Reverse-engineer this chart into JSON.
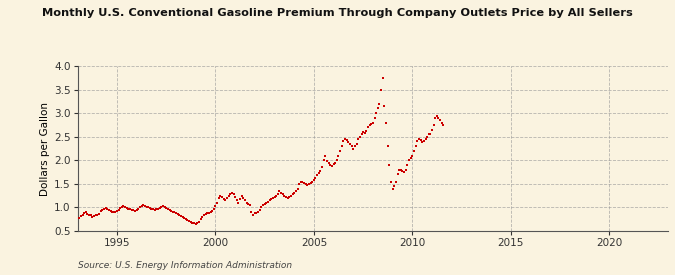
{
  "title": "Monthly U.S. Conventional Gasoline Premium Through Company Outlets Price by All Sellers",
  "ylabel": "Dollars per Gallon",
  "source": "Source: U.S. Energy Information Administration",
  "xlim": [
    1993.0,
    2023.0
  ],
  "ylim": [
    0.5,
    4.0
  ],
  "yticks": [
    0.5,
    1.0,
    1.5,
    2.0,
    2.5,
    3.0,
    3.5,
    4.0
  ],
  "xticks": [
    1995,
    2000,
    2005,
    2010,
    2015,
    2020
  ],
  "marker_color": "#cc0000",
  "background_color": "#faf3e0",
  "grid_color": "#999999",
  "data": [
    [
      1993.08,
      0.78
    ],
    [
      1993.17,
      0.82
    ],
    [
      1993.25,
      0.85
    ],
    [
      1993.33,
      0.88
    ],
    [
      1993.42,
      0.9
    ],
    [
      1993.5,
      0.87
    ],
    [
      1993.58,
      0.85
    ],
    [
      1993.67,
      0.83
    ],
    [
      1993.75,
      0.8
    ],
    [
      1993.83,
      0.82
    ],
    [
      1993.92,
      0.84
    ],
    [
      1994.0,
      0.85
    ],
    [
      1994.08,
      0.87
    ],
    [
      1994.17,
      0.92
    ],
    [
      1994.25,
      0.95
    ],
    [
      1994.33,
      0.97
    ],
    [
      1994.42,
      0.98
    ],
    [
      1994.5,
      0.96
    ],
    [
      1994.58,
      0.94
    ],
    [
      1994.67,
      0.93
    ],
    [
      1994.75,
      0.91
    ],
    [
      1994.83,
      0.9
    ],
    [
      1994.92,
      0.91
    ],
    [
      1995.0,
      0.93
    ],
    [
      1995.08,
      0.95
    ],
    [
      1995.17,
      0.98
    ],
    [
      1995.25,
      1.0
    ],
    [
      1995.33,
      1.02
    ],
    [
      1995.42,
      1.01
    ],
    [
      1995.5,
      0.99
    ],
    [
      1995.58,
      0.97
    ],
    [
      1995.67,
      0.96
    ],
    [
      1995.75,
      0.95
    ],
    [
      1995.83,
      0.94
    ],
    [
      1995.92,
      0.93
    ],
    [
      1996.0,
      0.94
    ],
    [
      1996.08,
      0.97
    ],
    [
      1996.17,
      1.01
    ],
    [
      1996.25,
      1.04
    ],
    [
      1996.33,
      1.05
    ],
    [
      1996.42,
      1.03
    ],
    [
      1996.5,
      1.01
    ],
    [
      1996.58,
      1.0
    ],
    [
      1996.67,
      0.98
    ],
    [
      1996.75,
      0.97
    ],
    [
      1996.83,
      0.96
    ],
    [
      1996.92,
      0.95
    ],
    [
      1997.0,
      0.96
    ],
    [
      1997.08,
      0.97
    ],
    [
      1997.17,
      0.99
    ],
    [
      1997.25,
      1.01
    ],
    [
      1997.33,
      1.02
    ],
    [
      1997.42,
      1.0
    ],
    [
      1997.5,
      0.98
    ],
    [
      1997.58,
      0.97
    ],
    [
      1997.67,
      0.95
    ],
    [
      1997.75,
      0.93
    ],
    [
      1997.83,
      0.91
    ],
    [
      1997.92,
      0.9
    ],
    [
      1998.0,
      0.88
    ],
    [
      1998.08,
      0.86
    ],
    [
      1998.17,
      0.84
    ],
    [
      1998.25,
      0.82
    ],
    [
      1998.33,
      0.8
    ],
    [
      1998.42,
      0.78
    ],
    [
      1998.5,
      0.76
    ],
    [
      1998.58,
      0.74
    ],
    [
      1998.67,
      0.72
    ],
    [
      1998.75,
      0.7
    ],
    [
      1998.83,
      0.68
    ],
    [
      1998.92,
      0.66
    ],
    [
      1999.0,
      0.65
    ],
    [
      1999.08,
      0.66
    ],
    [
      1999.17,
      0.7
    ],
    [
      1999.25,
      0.75
    ],
    [
      1999.33,
      0.8
    ],
    [
      1999.42,
      0.84
    ],
    [
      1999.5,
      0.86
    ],
    [
      1999.58,
      0.88
    ],
    [
      1999.67,
      0.88
    ],
    [
      1999.75,
      0.9
    ],
    [
      1999.83,
      0.93
    ],
    [
      1999.92,
      0.97
    ],
    [
      2000.0,
      1.02
    ],
    [
      2000.08,
      1.1
    ],
    [
      2000.17,
      1.2
    ],
    [
      2000.25,
      1.25
    ],
    [
      2000.33,
      1.22
    ],
    [
      2000.42,
      1.18
    ],
    [
      2000.5,
      1.15
    ],
    [
      2000.58,
      1.2
    ],
    [
      2000.67,
      1.25
    ],
    [
      2000.75,
      1.28
    ],
    [
      2000.83,
      1.3
    ],
    [
      2000.92,
      1.28
    ],
    [
      2001.0,
      1.22
    ],
    [
      2001.08,
      1.15
    ],
    [
      2001.17,
      1.1
    ],
    [
      2001.25,
      1.18
    ],
    [
      2001.33,
      1.25
    ],
    [
      2001.42,
      1.2
    ],
    [
      2001.5,
      1.15
    ],
    [
      2001.58,
      1.1
    ],
    [
      2001.67,
      1.08
    ],
    [
      2001.75,
      1.05
    ],
    [
      2001.83,
      0.9
    ],
    [
      2001.92,
      0.85
    ],
    [
      2002.0,
      0.88
    ],
    [
      2002.08,
      0.88
    ],
    [
      2002.17,
      0.9
    ],
    [
      2002.25,
      0.95
    ],
    [
      2002.33,
      1.0
    ],
    [
      2002.42,
      1.05
    ],
    [
      2002.5,
      1.08
    ],
    [
      2002.58,
      1.1
    ],
    [
      2002.67,
      1.12
    ],
    [
      2002.75,
      1.15
    ],
    [
      2002.83,
      1.18
    ],
    [
      2002.92,
      1.2
    ],
    [
      2003.0,
      1.22
    ],
    [
      2003.08,
      1.25
    ],
    [
      2003.17,
      1.28
    ],
    [
      2003.25,
      1.35
    ],
    [
      2003.33,
      1.3
    ],
    [
      2003.42,
      1.28
    ],
    [
      2003.5,
      1.25
    ],
    [
      2003.58,
      1.22
    ],
    [
      2003.67,
      1.2
    ],
    [
      2003.75,
      1.22
    ],
    [
      2003.83,
      1.25
    ],
    [
      2003.92,
      1.28
    ],
    [
      2004.0,
      1.3
    ],
    [
      2004.08,
      1.35
    ],
    [
      2004.17,
      1.4
    ],
    [
      2004.25,
      1.5
    ],
    [
      2004.33,
      1.55
    ],
    [
      2004.42,
      1.55
    ],
    [
      2004.5,
      1.52
    ],
    [
      2004.58,
      1.5
    ],
    [
      2004.67,
      1.48
    ],
    [
      2004.75,
      1.5
    ],
    [
      2004.83,
      1.52
    ],
    [
      2004.92,
      1.55
    ],
    [
      2005.0,
      1.58
    ],
    [
      2005.08,
      1.62
    ],
    [
      2005.17,
      1.68
    ],
    [
      2005.25,
      1.72
    ],
    [
      2005.33,
      1.78
    ],
    [
      2005.42,
      1.85
    ],
    [
      2005.5,
      2.0
    ],
    [
      2005.58,
      2.1
    ],
    [
      2005.67,
      1.98
    ],
    [
      2005.75,
      1.95
    ],
    [
      2005.83,
      1.9
    ],
    [
      2005.92,
      1.88
    ],
    [
      2006.0,
      1.92
    ],
    [
      2006.08,
      1.95
    ],
    [
      2006.17,
      2.0
    ],
    [
      2006.25,
      2.1
    ],
    [
      2006.33,
      2.2
    ],
    [
      2006.42,
      2.3
    ],
    [
      2006.5,
      2.4
    ],
    [
      2006.58,
      2.45
    ],
    [
      2006.67,
      2.42
    ],
    [
      2006.75,
      2.38
    ],
    [
      2006.83,
      2.35
    ],
    [
      2006.92,
      2.3
    ],
    [
      2007.0,
      2.25
    ],
    [
      2007.08,
      2.3
    ],
    [
      2007.17,
      2.35
    ],
    [
      2007.25,
      2.45
    ],
    [
      2007.33,
      2.5
    ],
    [
      2007.42,
      2.55
    ],
    [
      2007.5,
      2.6
    ],
    [
      2007.58,
      2.58
    ],
    [
      2007.67,
      2.62
    ],
    [
      2007.75,
      2.7
    ],
    [
      2007.83,
      2.75
    ],
    [
      2007.92,
      2.78
    ],
    [
      2008.0,
      2.8
    ],
    [
      2008.08,
      2.9
    ],
    [
      2008.17,
      3.0
    ],
    [
      2008.25,
      3.1
    ],
    [
      2008.33,
      3.2
    ],
    [
      2008.42,
      3.5
    ],
    [
      2008.5,
      3.75
    ],
    [
      2008.58,
      3.15
    ],
    [
      2008.67,
      2.8
    ],
    [
      2008.75,
      2.3
    ],
    [
      2008.83,
      1.9
    ],
    [
      2008.92,
      1.55
    ],
    [
      2009.0,
      1.4
    ],
    [
      2009.08,
      1.45
    ],
    [
      2009.17,
      1.55
    ],
    [
      2009.25,
      1.7
    ],
    [
      2009.33,
      1.8
    ],
    [
      2009.42,
      1.8
    ],
    [
      2009.5,
      1.78
    ],
    [
      2009.58,
      1.75
    ],
    [
      2009.67,
      1.8
    ],
    [
      2009.75,
      1.9
    ],
    [
      2009.83,
      2.0
    ],
    [
      2009.92,
      2.05
    ],
    [
      2010.0,
      2.1
    ],
    [
      2010.08,
      2.2
    ],
    [
      2010.17,
      2.3
    ],
    [
      2010.25,
      2.4
    ],
    [
      2010.33,
      2.45
    ],
    [
      2010.42,
      2.42
    ],
    [
      2010.5,
      2.38
    ],
    [
      2010.58,
      2.4
    ],
    [
      2010.67,
      2.45
    ],
    [
      2010.75,
      2.5
    ],
    [
      2010.83,
      2.55
    ],
    [
      2010.92,
      2.55
    ],
    [
      2011.0,
      2.65
    ],
    [
      2011.08,
      2.75
    ],
    [
      2011.17,
      2.9
    ],
    [
      2011.25,
      2.95
    ],
    [
      2011.33,
      2.9
    ],
    [
      2011.42,
      2.85
    ],
    [
      2011.5,
      2.8
    ],
    [
      2011.58,
      2.75
    ]
  ]
}
